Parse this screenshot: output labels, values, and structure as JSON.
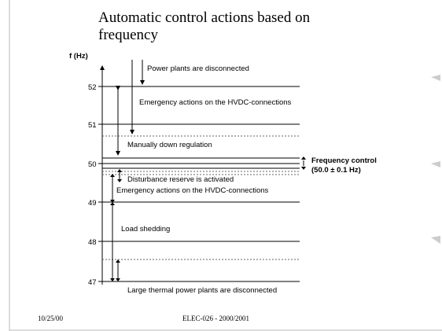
{
  "title": "Automatic control actions based on frequency",
  "axis": {
    "label": "f (Hz)",
    "ticks": [
      "52",
      "51",
      "50",
      "49",
      "48",
      "47"
    ]
  },
  "annotations": [
    "Power plants are disconnected",
    "Emergency actions on the HVDC-connections",
    "Manually down regulation",
    "Disturbance reserve is activated",
    "Emergency actions on the HVDC-connections",
    "Load shedding",
    "Large thermal power plants are disconnected"
  ],
  "frequency_control": {
    "label": "Frequency control",
    "range": "(50.0 ± 0.1 Hz)"
  },
  "footer": {
    "date": "10/25/00",
    "course": "ELEC-026 - 2000/2001"
  }
}
